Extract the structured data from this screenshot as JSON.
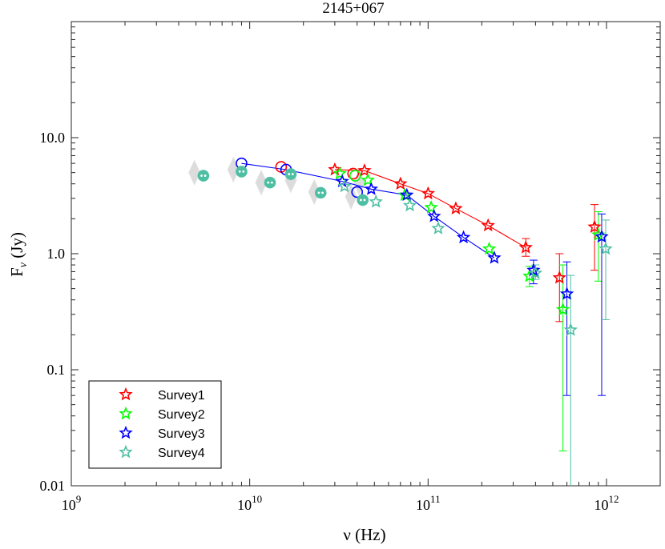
{
  "chart_data": {
    "type": "scatter",
    "title": "2145+067",
    "xlabel": "ν (Hz)",
    "ylabel": "F_ν (Jy)",
    "xscale": "log",
    "yscale": "log",
    "xlim": [
      1000000000.0,
      2000000000000.0
    ],
    "ylim": [
      0.01,
      100
    ],
    "x_ticks": [
      {
        "value": 1000000000.0,
        "base": "10",
        "exp": "9"
      },
      {
        "value": 10000000000.0,
        "base": "10",
        "exp": "10"
      },
      {
        "value": 100000000000.0,
        "base": "10",
        "exp": "11"
      },
      {
        "value": 1000000000000.0,
        "base": "10",
        "exp": "12"
      }
    ],
    "y_ticks": [
      {
        "value": 0.01,
        "label": "0.01"
      },
      {
        "value": 0.1,
        "label": "0.1"
      },
      {
        "value": 1,
        "label": "1.0"
      },
      {
        "value": 10,
        "label": "10.0"
      }
    ],
    "legend_position": "bottom-left",
    "series": [
      {
        "name": "Survey1",
        "color": "#ff0000",
        "stars": [
          {
            "x": 30000000000.0,
            "y": 5.3
          },
          {
            "x": 44000000000.0,
            "y": 5.2
          },
          {
            "x": 70000000000.0,
            "y": 4.0
          },
          {
            "x": 100000000000.0,
            "y": 3.3
          },
          {
            "x": 143000000000.0,
            "y": 2.45
          },
          {
            "x": 217000000000.0,
            "y": 1.75
          },
          {
            "x": 353000000000.0,
            "y": 1.13,
            "err": [
              0.95,
              1.35
            ]
          },
          {
            "x": 545000000000.0,
            "y": 0.62,
            "err": [
              0.26,
              1.0
            ]
          },
          {
            "x": 857000000000.0,
            "y": 1.7,
            "err": [
              0.72,
              2.65
            ]
          }
        ],
        "circles": [
          {
            "x": 15000000000.0,
            "y": 5.6
          },
          {
            "x": 38000000000.0,
            "y": 4.9
          }
        ],
        "line_x": [
          30000000000.0,
          44000000000.0,
          70000000000.0,
          100000000000.0,
          143000000000.0,
          217000000000.0,
          353000000000.0
        ],
        "line_y": [
          5.3,
          5.2,
          4.0,
          3.3,
          2.45,
          1.75,
          1.13
        ]
      },
      {
        "name": "Survey2",
        "color": "#00ff00",
        "stars": [
          {
            "x": 32000000000.0,
            "y": 4.9
          },
          {
            "x": 46000000000.0,
            "y": 4.3
          },
          {
            "x": 74000000000.0,
            "y": 3.2
          },
          {
            "x": 104000000000.0,
            "y": 2.5
          },
          {
            "x": 220000000000.0,
            "y": 1.1
          },
          {
            "x": 370000000000.0,
            "y": 0.64,
            "err": [
              0.52,
              0.78
            ]
          },
          {
            "x": 570000000000.0,
            "y": 0.33,
            "err": [
              0.02,
              0.8
            ]
          },
          {
            "x": 900000000000.0,
            "y": 1.45,
            "err": [
              0.58,
              2.3
            ]
          }
        ],
        "circles": [
          {
            "x": 39000000000.0,
            "y": 4.7
          }
        ],
        "line_x": [],
        "line_y": []
      },
      {
        "name": "Survey3",
        "color": "#0000ff",
        "stars": [
          {
            "x": 33000000000.0,
            "y": 4.2
          },
          {
            "x": 48000000000.0,
            "y": 3.6
          },
          {
            "x": 76000000000.0,
            "y": 3.2
          },
          {
            "x": 108000000000.0,
            "y": 2.1
          },
          {
            "x": 158000000000.0,
            "y": 1.38
          },
          {
            "x": 235000000000.0,
            "y": 0.92
          },
          {
            "x": 390000000000.0,
            "y": 0.72,
            "err": [
              0.55,
              0.88
            ]
          },
          {
            "x": 600000000000.0,
            "y": 0.45,
            "err": [
              0.06,
              0.85
            ]
          },
          {
            "x": 940000000000.0,
            "y": 1.4,
            "err": [
              0.06,
              2.2
            ]
          }
        ],
        "circles": [
          {
            "x": 9000000000.0,
            "y": 6.0
          },
          {
            "x": 16000000000.0,
            "y": 5.3
          },
          {
            "x": 40000000000.0,
            "y": 3.4
          }
        ],
        "line_x": [
          9000000000.0,
          16000000000.0,
          33000000000.0,
          48000000000.0,
          76000000000.0,
          108000000000.0,
          158000000000.0,
          235000000000.0
        ],
        "line_y": [
          6.0,
          5.3,
          4.2,
          3.6,
          3.2,
          2.1,
          1.38,
          0.92
        ]
      },
      {
        "name": "Survey4",
        "color": "#4fbfa3",
        "stars": [
          {
            "x": 34000000000.0,
            "y": 3.8
          },
          {
            "x": 51000000000.0,
            "y": 2.8
          },
          {
            "x": 79000000000.0,
            "y": 2.6
          },
          {
            "x": 114000000000.0,
            "y": 1.65
          },
          {
            "x": 400000000000.0,
            "y": 0.68,
            "err": [
              0.6,
              0.8
            ]
          },
          {
            "x": 630000000000.0,
            "y": 0.22,
            "err": [
              0.005,
              0.65
            ]
          },
          {
            "x": 990000000000.0,
            "y": 1.1,
            "err": [
              0.27,
              1.95
            ]
          }
        ],
        "circles": [
          {
            "x": 5500000000.0,
            "y": 4.7
          },
          {
            "x": 9000000000.0,
            "y": 5.1
          },
          {
            "x": 13000000000.0,
            "y": 4.1
          },
          {
            "x": 17000000000.0,
            "y": 4.85
          },
          {
            "x": 25000000000.0,
            "y": 3.35
          },
          {
            "x": 43000000000.0,
            "y": 2.9
          }
        ],
        "line_x": [],
        "line_y": []
      }
    ],
    "gray_diamonds": [
      {
        "x": 4900000000.0,
        "y": 5.0
      },
      {
        "x": 8100000000.0,
        "y": 5.3
      },
      {
        "x": 11600000000.0,
        "y": 4.1
      },
      {
        "x": 17000000000.0,
        "y": 4.3
      },
      {
        "x": 23000000000.0,
        "y": 3.4
      },
      {
        "x": 37000000000.0,
        "y": 3.1
      },
      {
        "x": 41000000000.0,
        "y": 4.1
      }
    ]
  }
}
